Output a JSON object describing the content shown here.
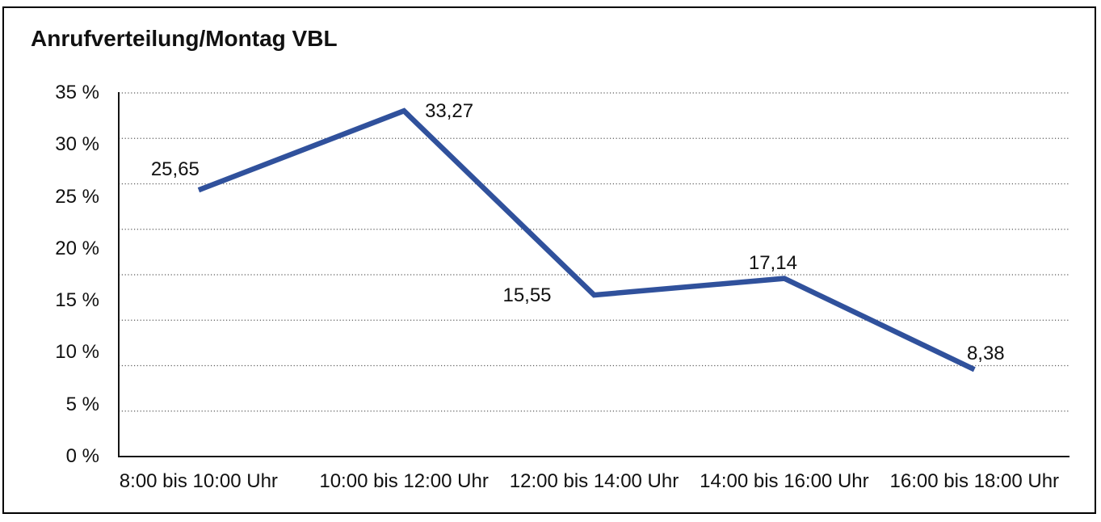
{
  "chart_data": {
    "type": "line",
    "title": "Anrufverteilung/Montag VBL",
    "categories": [
      "8:00 bis 10:00 Uhr",
      "10:00 bis 12:00 Uhr",
      "12:00 bis 14:00 Uhr",
      "14:00 bis 16:00 Uhr",
      "16:00 bis 18:00 Uhr"
    ],
    "values": [
      25.65,
      33.27,
      15.55,
      17.14,
      8.38
    ],
    "value_labels": [
      "25,65",
      "33,27",
      "15,55",
      "17,14",
      "8,38"
    ],
    "xlabel": "",
    "ylabel": "",
    "ylim": [
      0,
      35
    ],
    "y_tick_values": [
      35,
      30,
      25,
      20,
      15,
      10,
      5,
      0
    ],
    "y_tick_labels": [
      "35 %",
      "30 %",
      "25 %",
      "20 %",
      "15 %",
      "10 %",
      "5 %",
      "0 %"
    ],
    "grid": "horizontal-dotted",
    "n_grid_intervals": 8,
    "legend": "none",
    "line_color": "#30519C",
    "axis_color": "#141414",
    "grid_color": "#5a5a5a",
    "text_color": "#111111"
  }
}
